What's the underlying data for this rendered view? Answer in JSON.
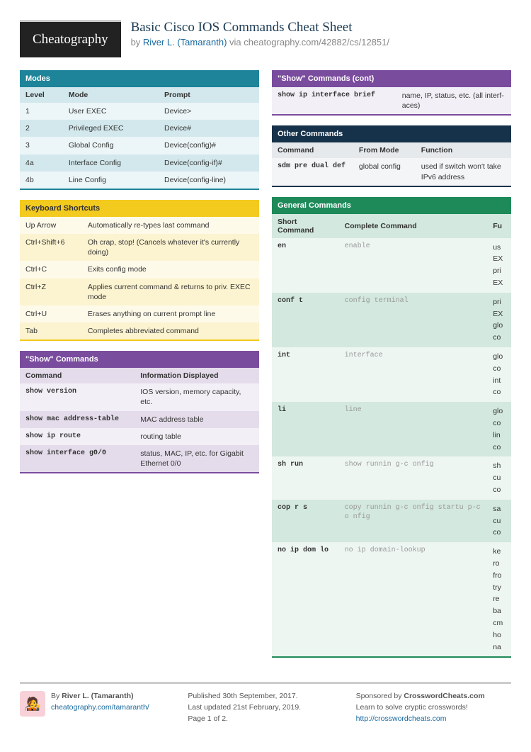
{
  "header": {
    "logo": "Cheatography",
    "title": "Basic Cisco IOS Commands Cheat Sheet",
    "by": "by ",
    "author": "River L. (Tamaranth)",
    "via": " via cheatography.com/42882/cs/12851/"
  },
  "colors": {
    "teal": "#1d8499",
    "teal_light": "#d2e8ec",
    "teal_lighter": "#ecf5f7",
    "yellow": "#f3ca1e",
    "yellow_light": "#fcf3d0",
    "yellow_lighter": "#fefaea",
    "purple": "#7a4c9e",
    "purple_light": "#e4dceb",
    "purple_lighter": "#f3eff6",
    "navy": "#16324a",
    "navy_light": "#e6e9ec",
    "navy_lighter": "#f4f5f7",
    "green": "#1e8a5a",
    "green_light": "#d3e8de",
    "green_lighter": "#eef6f2"
  },
  "blocks": {
    "modes": {
      "title": "Modes",
      "headers": [
        "Level",
        "Mode",
        "Prompt"
      ],
      "rows": [
        [
          "1",
          "User EXEC",
          "Device>"
        ],
        [
          "2",
          "Privileged EXEC",
          "Device#"
        ],
        [
          "3",
          "Global Config",
          "Device(config)#"
        ],
        [
          "4a",
          "Interface Config",
          "Device(config-if)#"
        ],
        [
          "4b",
          "Line Config",
          "Device(config-line)"
        ]
      ]
    },
    "keyboard": {
      "title": "Keyboard Shortcuts",
      "rows": [
        [
          "Up Arrow",
          "Automatically re-types last command"
        ],
        [
          "Ctrl+Shift+6",
          "Oh crap, stop! (Cancels whatever it's currently doing)"
        ],
        [
          "Ctrl+C",
          "Exits config mode"
        ],
        [
          "Ctrl+Z",
          "Applies current command & returns to priv. EXEC mode"
        ],
        [
          "Ctrl+U",
          "Erases anything on current prompt line"
        ],
        [
          "Tab",
          "Completes abbreviated command"
        ]
      ]
    },
    "show": {
      "title": "\"Show\" Commands",
      "headers": [
        "Command",
        "Information Displayed"
      ],
      "rows": [
        [
          "show version",
          "IOS version, memory capacity, etc."
        ],
        [
          "show mac address-table",
          "MAC address table"
        ],
        [
          "show ip route",
          "routing table"
        ],
        [
          "show interface g0/0",
          "status, MAC, IP, etc. for Gigabit Ethernet 0/0"
        ]
      ]
    },
    "showcont": {
      "title": "\"Show\" Commands (cont)",
      "rows": [
        [
          "show ip interface brief",
          "name, IP, status, etc. (all interf­aces)"
        ]
      ]
    },
    "other": {
      "title": "Other Commands",
      "headers": [
        "Command",
        "From Mode",
        "Function"
      ],
      "rows": [
        [
          "sdm pre dual def",
          "global config",
          "used if switch won't take IPv6 address"
        ]
      ]
    },
    "general": {
      "title": "General Commands",
      "headers": [
        "Short Command",
        "Complete Command",
        "Fu"
      ],
      "rows": [
        [
          "en",
          "enable",
          "us EX pri EX"
        ],
        [
          "conf t",
          "config terminal",
          "pri EX glo co"
        ],
        [
          "int",
          "interface",
          "glo co int co"
        ],
        [
          "li",
          "line",
          "glo co lin co"
        ],
        [
          "sh run",
          "show runnin g-c onfig",
          "sh cu co"
        ],
        [
          "cop r s",
          "copy runnin g-c onfig startu p-c o nfig",
          "sa cu co"
        ],
        [
          "no ip dom lo",
          "no ip domain-lookup",
          "ke ro fro try re ba cm ho na"
        ]
      ]
    }
  },
  "footer": {
    "col1": {
      "by": "By ",
      "author": "River L. (Tamaranth)",
      "url": "cheatography.com/tamaranth/"
    },
    "col2": {
      "l1": "Published 30th September, 2017.",
      "l2": "Last updated 21st February, 2019.",
      "l3": "Page 1 of 2."
    },
    "col3": {
      "l1": "Sponsored by ",
      "sponsor": "CrosswordCheats.com",
      "l2": "Learn to solve cryptic crosswords!",
      "url": "http://crosswordcheats.com"
    }
  }
}
